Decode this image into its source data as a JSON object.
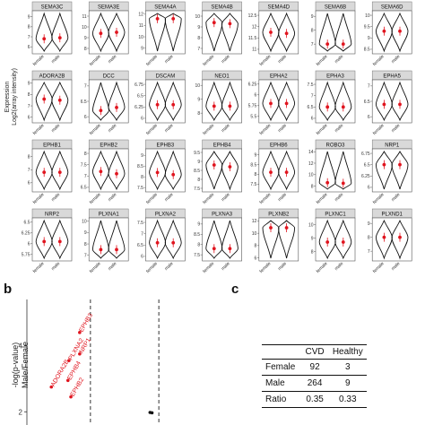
{
  "panel_labels": {
    "b": "b",
    "c": "c"
  },
  "grid": {
    "y_axis_label_line1": "Expression",
    "y_axis_label_line2": "Log2(array intensity)",
    "x_categories": [
      "female",
      "male"
    ]
  },
  "chart_data": [
    {
      "type": "violin",
      "layout": "facet-grid 4x7",
      "x_categories": [
        "female",
        "male"
      ],
      "panels": [
        {
          "title": "SEMA3C",
          "ticks": [
            6,
            7,
            8,
            9
          ],
          "ylim": [
            5.3,
            9.6
          ],
          "means": [
            6.8,
            6.9
          ]
        },
        {
          "title": "SEMA3E",
          "ticks": [
            8,
            9,
            10,
            11
          ],
          "ylim": [
            7.5,
            11.5
          ],
          "means": [
            9.4,
            9.5
          ]
        },
        {
          "title": "SEMA4A",
          "ticks": [
            9,
            10,
            11,
            12
          ],
          "ylim": [
            8.5,
            12.3
          ],
          "means": [
            11.6,
            11.6
          ]
        },
        {
          "title": "SEMA4B",
          "ticks": [
            7,
            8,
            9,
            10
          ],
          "ylim": [
            6.5,
            10.5
          ],
          "means": [
            9.4,
            9.3
          ]
        },
        {
          "title": "SEMA4D",
          "ticks": [
            11.0,
            11.5,
            12.0,
            12.5
          ],
          "ylim": [
            10.8,
            12.7
          ],
          "means": [
            11.75,
            11.7
          ]
        },
        {
          "title": "SEMA6B",
          "ticks": [
            7,
            8,
            9
          ],
          "ylim": [
            6.3,
            9.4
          ],
          "means": [
            7.0,
            7.0
          ]
        },
        {
          "title": "SEMA6D",
          "ticks": [
            8.5,
            9.0,
            9.5,
            10.0
          ],
          "ylim": [
            8.3,
            10.2
          ],
          "means": [
            9.3,
            9.3
          ]
        },
        {
          "title": "ADORA2B",
          "ticks": [
            6,
            7,
            8,
            9
          ],
          "ylim": [
            5.5,
            9.3
          ],
          "means": [
            7.6,
            7.5
          ]
        },
        {
          "title": "DCC",
          "ticks": [
            6.0,
            6.5,
            7.0
          ],
          "ylim": [
            5.8,
            7.2
          ],
          "means": [
            6.2,
            6.3
          ]
        },
        {
          "title": "DSCAM",
          "ticks": [
            6.0,
            6.25,
            6.5,
            6.75
          ],
          "ylim": [
            5.9,
            6.85
          ],
          "means": [
            6.3,
            6.3
          ]
        },
        {
          "title": "NEO1",
          "ticks": [
            8,
            9,
            10
          ],
          "ylim": [
            7.3,
            10.4
          ],
          "means": [
            8.5,
            8.5
          ]
        },
        {
          "title": "EPHA2",
          "ticks": [
            5.5,
            5.75,
            6.0,
            6.25
          ],
          "ylim": [
            5.35,
            6.35
          ],
          "means": [
            5.8,
            5.8
          ]
        },
        {
          "title": "EPHA3",
          "ticks": [
            6.0,
            6.5,
            7.0,
            7.5
          ],
          "ylim": [
            5.8,
            7.7
          ],
          "means": [
            6.5,
            6.5
          ]
        },
        {
          "title": "EPHA5",
          "ticks": [
            6.0,
            6.5,
            7.0
          ],
          "ylim": [
            5.8,
            7.2
          ],
          "means": [
            6.4,
            6.4
          ]
        },
        {
          "title": "EPHB1",
          "ticks": [
            6,
            7,
            8
          ],
          "ylim": [
            5.3,
            8.6
          ],
          "means": [
            6.8,
            6.8
          ]
        },
        {
          "title": "EPHB2",
          "ticks": [
            6.5,
            7.0,
            7.5,
            8.0
          ],
          "ylim": [
            6.3,
            8.2
          ],
          "means": [
            7.2,
            7.1
          ]
        },
        {
          "title": "EPHB3",
          "ticks": [
            7.5,
            8.0,
            8.5,
            9.0
          ],
          "ylim": [
            7.3,
            9.3
          ],
          "means": [
            8.2,
            8.1
          ]
        },
        {
          "title": "EPHB4",
          "ticks": [
            7.5,
            8.0,
            8.5,
            9.0,
            9.5
          ],
          "ylim": [
            7.3,
            9.7
          ],
          "means": [
            8.8,
            8.7
          ]
        },
        {
          "title": "EPHB6",
          "ticks": [
            7.5,
            8.0,
            8.5,
            9.0
          ],
          "ylim": [
            7.1,
            9.3
          ],
          "means": [
            8.1,
            8.1
          ]
        },
        {
          "title": "ROBO3",
          "ticks": [
            8,
            10,
            12,
            14
          ],
          "ylim": [
            7.0,
            14.5
          ],
          "means": [
            8.6,
            8.5
          ]
        },
        {
          "title": "NRP1",
          "ticks": [
            6.0,
            6.25,
            6.5,
            6.75
          ],
          "ylim": [
            5.9,
            6.85
          ],
          "means": [
            6.5,
            6.5
          ]
        },
        {
          "title": "NRP2",
          "ticks": [
            5.75,
            6.0,
            6.25,
            6.5
          ],
          "ylim": [
            5.6,
            6.6
          ],
          "means": [
            6.05,
            6.05
          ]
        },
        {
          "title": "PLXNA1",
          "ticks": [
            7,
            8,
            9,
            10
          ],
          "ylim": [
            6.5,
            10.3
          ],
          "means": [
            7.5,
            7.5
          ]
        },
        {
          "title": "PLXNA2",
          "ticks": [
            6.0,
            6.5,
            7.0,
            7.5
          ],
          "ylim": [
            5.8,
            7.7
          ],
          "means": [
            6.6,
            6.6
          ]
        },
        {
          "title": "PLXNA3",
          "ticks": [
            7.5,
            8.0,
            8.5,
            9.0
          ],
          "ylim": [
            7.2,
            9.3
          ],
          "means": [
            7.8,
            7.8
          ]
        },
        {
          "title": "PLXNB2",
          "ticks": [
            6,
            8,
            10,
            12
          ],
          "ylim": [
            5.5,
            12.5
          ],
          "means": [
            10.9,
            10.9
          ]
        },
        {
          "title": "PLXNC1",
          "ticks": [
            8,
            9,
            10
          ],
          "ylim": [
            7.3,
            10.5
          ],
          "means": [
            8.7,
            8.7
          ]
        },
        {
          "title": "PLXND1",
          "ticks": [
            7,
            8,
            9
          ],
          "ylim": [
            6.3,
            9.4
          ],
          "means": [
            8.0,
            8.0
          ]
        }
      ]
    },
    {
      "type": "scatter",
      "ylabel_line1": "-log(p-value)",
      "ylabel_line2": "Male/Female",
      "y_ticks": [
        2,
        4
      ],
      "ylim": [
        1.6,
        5.4
      ],
      "xlim": [
        -1,
        1
      ],
      "threshold_x": [
        -0.35,
        0.35
      ],
      "points": [
        {
          "label": "ADORA2B",
          "x": -0.75,
          "y": 2.75
        },
        {
          "label": "EPHB3",
          "x": -0.46,
          "y": 4.4
        },
        {
          "label": "PLXNA2",
          "x": -0.57,
          "y": 3.55
        },
        {
          "label": "NRP1",
          "x": -0.46,
          "y": 3.75
        },
        {
          "label": "EPHB4",
          "x": -0.58,
          "y": 2.95
        },
        {
          "label": "EPHB2",
          "x": -0.55,
          "y": 2.45
        },
        {
          "label": "",
          "x": 0.26,
          "y": 1.98
        },
        {
          "label": "",
          "x": 0.28,
          "y": 1.97
        }
      ]
    }
  ],
  "contingency_table": {
    "columns": [
      "",
      "CVD",
      "Healthy"
    ],
    "rows": [
      {
        "label": "Female",
        "cvd": "92",
        "healthy": "3"
      },
      {
        "label": "Male",
        "cvd": "264",
        "healthy": "9"
      },
      {
        "label": "Ratio",
        "cvd": "0.35",
        "healthy": "0.33"
      }
    ]
  },
  "colors": {
    "mean_point": "#e0141e",
    "strip_bg": "#d9d9d9",
    "outline": "#111111"
  }
}
